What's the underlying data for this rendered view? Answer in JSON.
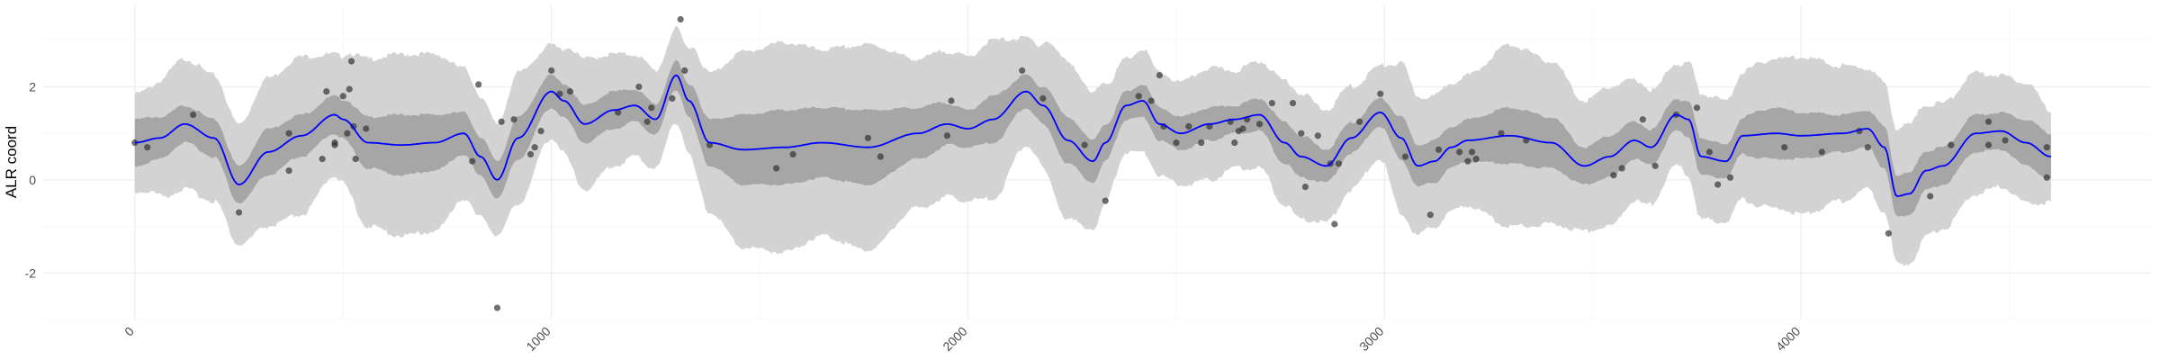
{
  "chart_data": {
    "type": "line",
    "title": "",
    "xlabel": "",
    "ylabel": "ALR coord",
    "xlim": [
      -220,
      4840
    ],
    "ylim": [
      -3.0,
      3.75
    ],
    "x_ticks": [
      0,
      1000,
      2000,
      3000,
      4000
    ],
    "x_tick_labels": [
      "0",
      "1000",
      "2000",
      "3000",
      "4000"
    ],
    "y_ticks": [
      -2,
      0,
      2
    ],
    "y_tick_labels": [
      "-2",
      "0",
      "2"
    ],
    "grid": true,
    "legend": "none",
    "colors": {
      "mean_line": "#0000ff",
      "inner_band": "#a6a6a6",
      "outer_band": "#d3d3d3",
      "points": "#333333",
      "grid_major": "#ebebeb",
      "grid_minor": "#f4f4f4"
    },
    "series": [
      {
        "kind": "mean",
        "x": [
          0,
          60,
          120,
          190,
          250,
          320,
          400,
          480,
          500,
          560,
          640,
          720,
          790,
          830,
          870,
          920,
          1000,
          1030,
          1080,
          1150,
          1200,
          1250,
          1300,
          1330,
          1380,
          1460,
          1560,
          1650,
          1760,
          1880,
          1950,
          2000,
          2060,
          2140,
          2180,
          2240,
          2300,
          2330,
          2380,
          2420,
          2460,
          2510,
          2580,
          2640,
          2700,
          2760,
          2800,
          2860,
          2920,
          2990,
          3040,
          3080,
          3120,
          3160,
          3200,
          3300,
          3400,
          3480,
          3540,
          3600,
          3640,
          3700,
          3730,
          3760,
          3820,
          3860,
          3940,
          4000,
          4100,
          4160,
          4200,
          4230,
          4260,
          4300,
          4340,
          4420,
          4480,
          4540,
          4600
        ],
        "y": [
          0.8,
          0.9,
          1.2,
          0.9,
          -0.1,
          0.6,
          0.95,
          1.4,
          1.3,
          0.8,
          0.75,
          0.8,
          1.0,
          0.5,
          0.0,
          0.9,
          1.9,
          1.7,
          1.2,
          1.5,
          1.6,
          1.3,
          2.25,
          1.7,
          0.8,
          0.65,
          0.7,
          0.8,
          0.7,
          1.0,
          1.2,
          1.1,
          1.3,
          1.9,
          1.6,
          0.85,
          0.4,
          0.8,
          1.6,
          1.7,
          1.2,
          1.0,
          1.2,
          1.3,
          1.4,
          0.8,
          0.5,
          0.3,
          0.9,
          1.45,
          0.9,
          0.3,
          0.4,
          0.7,
          0.85,
          0.95,
          0.8,
          0.3,
          0.5,
          0.85,
          0.7,
          1.4,
          1.3,
          0.5,
          0.4,
          0.95,
          1.0,
          0.95,
          1.0,
          1.1,
          0.7,
          -0.35,
          -0.3,
          0.2,
          0.3,
          1.0,
          1.05,
          0.8,
          0.5
        ]
      },
      {
        "kind": "inner_band_halfwidth",
        "x": [
          0,
          120,
          250,
          320,
          400,
          480,
          560,
          640,
          720,
          790,
          870,
          920,
          1000,
          1080,
          1150,
          1200,
          1300,
          1380,
          1460,
          1560,
          1650,
          1760,
          1880,
          2000,
          2060,
          2140,
          2240,
          2300,
          2380,
          2420,
          2510,
          2580,
          2640,
          2700,
          2760,
          2800,
          2860,
          2990,
          3040,
          3120,
          3200,
          3300,
          3400,
          3480,
          3540,
          3600,
          3700,
          3760,
          3820,
          3940,
          4000,
          4100,
          4160,
          4200,
          4260,
          4340,
          4420,
          4480,
          4540,
          4600
        ],
        "y": [
          0.5,
          0.4,
          0.4,
          0.5,
          0.45,
          0.4,
          0.55,
          0.65,
          0.6,
          0.45,
          0.4,
          0.45,
          0.35,
          0.4,
          0.4,
          0.35,
          0.3,
          0.5,
          0.75,
          0.8,
          0.75,
          0.8,
          0.55,
          0.4,
          0.5,
          0.35,
          0.5,
          0.45,
          0.3,
          0.35,
          0.35,
          0.35,
          0.3,
          0.35,
          0.45,
          0.45,
          0.35,
          0.3,
          0.45,
          0.45,
          0.45,
          0.6,
          0.55,
          0.4,
          0.45,
          0.4,
          0.35,
          0.4,
          0.35,
          0.55,
          0.5,
          0.4,
          0.4,
          0.45,
          0.45,
          0.4,
          0.4,
          0.4,
          0.5,
          0.5
        ]
      },
      {
        "kind": "outer_band_halfwidth",
        "x": [
          0,
          120,
          250,
          320,
          400,
          480,
          560,
          640,
          720,
          790,
          870,
          920,
          1000,
          1080,
          1150,
          1200,
          1300,
          1380,
          1460,
          1560,
          1650,
          1760,
          1880,
          2000,
          2060,
          2140,
          2240,
          2300,
          2380,
          2420,
          2510,
          2580,
          2640,
          2700,
          2760,
          2800,
          2860,
          2990,
          3040,
          3120,
          3200,
          3300,
          3400,
          3480,
          3540,
          3600,
          3700,
          3760,
          3820,
          3940,
          4000,
          4100,
          4160,
          4200,
          4260,
          4340,
          4420,
          4480,
          4540,
          4600
        ],
        "y": [
          1.05,
          1.4,
          1.3,
          1.6,
          1.7,
          1.3,
          1.8,
          1.95,
          1.9,
          1.4,
          1.2,
          1.4,
          1.0,
          1.4,
          1.2,
          1.1,
          1.0,
          1.5,
          2.1,
          2.25,
          2.0,
          2.2,
          1.6,
          1.55,
          1.7,
          1.15,
          1.7,
          1.45,
          1.0,
          1.1,
          1.1,
          1.2,
          1.05,
          1.15,
          1.35,
          1.35,
          1.2,
          1.0,
          1.6,
          1.4,
          1.4,
          1.95,
          1.75,
          1.4,
          1.5,
          1.3,
          1.1,
          1.35,
          1.3,
          1.6,
          1.7,
          1.45,
          1.3,
          1.4,
          1.5,
          1.35,
          1.3,
          1.2,
          1.3,
          1.0
        ]
      }
    ],
    "points": [
      {
        "x": 0,
        "y": 0.8
      },
      {
        "x": 30,
        "y": 0.7
      },
      {
        "x": 140,
        "y": 1.4
      },
      {
        "x": 250,
        "y": -0.7
      },
      {
        "x": 370,
        "y": 1.0
      },
      {
        "x": 370,
        "y": 0.2
      },
      {
        "x": 450,
        "y": 0.45
      },
      {
        "x": 460,
        "y": 1.9
      },
      {
        "x": 480,
        "y": 0.75
      },
      {
        "x": 480,
        "y": 0.8
      },
      {
        "x": 500,
        "y": 1.8
      },
      {
        "x": 510,
        "y": 1.0
      },
      {
        "x": 515,
        "y": 1.95
      },
      {
        "x": 520,
        "y": 2.55
      },
      {
        "x": 525,
        "y": 1.15
      },
      {
        "x": 530,
        "y": 0.45
      },
      {
        "x": 555,
        "y": 1.1
      },
      {
        "x": 810,
        "y": 0.4
      },
      {
        "x": 825,
        "y": 2.05
      },
      {
        "x": 870,
        "y": -2.75
      },
      {
        "x": 880,
        "y": 1.25
      },
      {
        "x": 910,
        "y": 1.3
      },
      {
        "x": 950,
        "y": 0.55
      },
      {
        "x": 960,
        "y": 0.7
      },
      {
        "x": 975,
        "y": 1.05
      },
      {
        "x": 1000,
        "y": 2.35
      },
      {
        "x": 1020,
        "y": 1.85
      },
      {
        "x": 1045,
        "y": 1.9
      },
      {
        "x": 1160,
        "y": 1.45
      },
      {
        "x": 1210,
        "y": 2.0
      },
      {
        "x": 1230,
        "y": 1.25
      },
      {
        "x": 1240,
        "y": 1.55
      },
      {
        "x": 1290,
        "y": 1.75
      },
      {
        "x": 1310,
        "y": 3.45
      },
      {
        "x": 1320,
        "y": 2.35
      },
      {
        "x": 1380,
        "y": 0.75
      },
      {
        "x": 1540,
        "y": 0.25
      },
      {
        "x": 1580,
        "y": 0.55
      },
      {
        "x": 1760,
        "y": 0.9
      },
      {
        "x": 1790,
        "y": 0.5
      },
      {
        "x": 1950,
        "y": 0.95
      },
      {
        "x": 1960,
        "y": 1.7
      },
      {
        "x": 2130,
        "y": 2.35
      },
      {
        "x": 2180,
        "y": 1.75
      },
      {
        "x": 2280,
        "y": 0.75
      },
      {
        "x": 2330,
        "y": -0.45
      },
      {
        "x": 2410,
        "y": 1.8
      },
      {
        "x": 2440,
        "y": 1.7
      },
      {
        "x": 2460,
        "y": 2.25
      },
      {
        "x": 2470,
        "y": 1.15
      },
      {
        "x": 2500,
        "y": 0.8
      },
      {
        "x": 2530,
        "y": 1.15
      },
      {
        "x": 2560,
        "y": 0.8
      },
      {
        "x": 2580,
        "y": 1.15
      },
      {
        "x": 2630,
        "y": 1.25
      },
      {
        "x": 2640,
        "y": 0.8
      },
      {
        "x": 2650,
        "y": 1.05
      },
      {
        "x": 2660,
        "y": 1.1
      },
      {
        "x": 2670,
        "y": 1.3
      },
      {
        "x": 2700,
        "y": 1.2
      },
      {
        "x": 2730,
        "y": 1.65
      },
      {
        "x": 2780,
        "y": 1.65
      },
      {
        "x": 2800,
        "y": 1.0
      },
      {
        "x": 2810,
        "y": -0.15
      },
      {
        "x": 2840,
        "y": 0.95
      },
      {
        "x": 2870,
        "y": 0.35
      },
      {
        "x": 2880,
        "y": -0.95
      },
      {
        "x": 2890,
        "y": 0.35
      },
      {
        "x": 2940,
        "y": 1.25
      },
      {
        "x": 2990,
        "y": 1.85
      },
      {
        "x": 3050,
        "y": 0.5
      },
      {
        "x": 3110,
        "y": -0.75
      },
      {
        "x": 3130,
        "y": 0.65
      },
      {
        "x": 3180,
        "y": 0.6
      },
      {
        "x": 3200,
        "y": 0.4
      },
      {
        "x": 3210,
        "y": 0.6
      },
      {
        "x": 3220,
        "y": 0.45
      },
      {
        "x": 3280,
        "y": 1.0
      },
      {
        "x": 3340,
        "y": 0.85
      },
      {
        "x": 3550,
        "y": 0.1
      },
      {
        "x": 3570,
        "y": 0.25
      },
      {
        "x": 3620,
        "y": 1.3
      },
      {
        "x": 3650,
        "y": 0.3
      },
      {
        "x": 3700,
        "y": 1.4
      },
      {
        "x": 3750,
        "y": 1.55
      },
      {
        "x": 3780,
        "y": 0.6
      },
      {
        "x": 3800,
        "y": -0.1
      },
      {
        "x": 3830,
        "y": 0.05
      },
      {
        "x": 3960,
        "y": 0.7
      },
      {
        "x": 4050,
        "y": 0.6
      },
      {
        "x": 4140,
        "y": 1.05
      },
      {
        "x": 4160,
        "y": 0.7
      },
      {
        "x": 4210,
        "y": -1.15
      },
      {
        "x": 4310,
        "y": -0.35
      },
      {
        "x": 4360,
        "y": 0.75
      },
      {
        "x": 4450,
        "y": 1.25
      },
      {
        "x": 4450,
        "y": 0.75
      },
      {
        "x": 4490,
        "y": 0.85
      },
      {
        "x": 4590,
        "y": 0.7
      },
      {
        "x": 4590,
        "y": 0.05
      }
    ]
  }
}
